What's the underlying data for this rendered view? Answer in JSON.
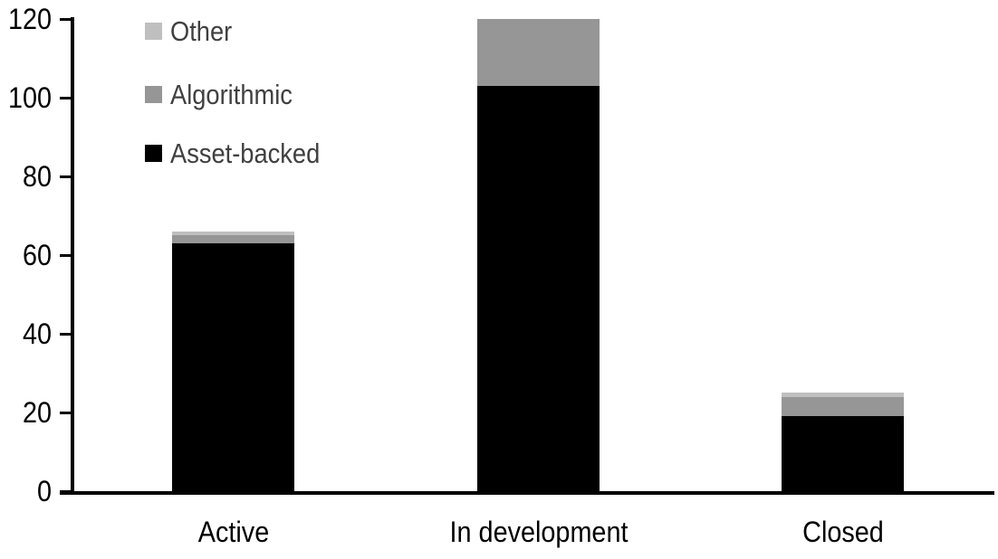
{
  "chart_data": {
    "type": "bar",
    "stacked": true,
    "title": "",
    "xlabel": "",
    "ylabel": "",
    "categories": [
      "Active",
      "In development",
      "Closed"
    ],
    "series": [
      {
        "name": "Asset-backed",
        "color": "#000000",
        "values": [
          63,
          103,
          19
        ]
      },
      {
        "name": "Algorithmic",
        "color": "#969696",
        "values": [
          2,
          17,
          5
        ]
      },
      {
        "name": "Other",
        "color": "#BFBFBF",
        "values": [
          1,
          0,
          1
        ]
      }
    ],
    "totals": [
      66,
      120,
      25
    ],
    "yticks": [
      0,
      20,
      40,
      60,
      80,
      100,
      120
    ],
    "ylim": [
      0,
      120
    ],
    "grid": false,
    "legend_position": "top-left",
    "legend_order": [
      "Other",
      "Algorithmic",
      "Asset-backed"
    ],
    "colors": {
      "axis": "#000000",
      "tick_label": "#000000",
      "legend_text": "#404040",
      "background": "#FFFFFF"
    }
  }
}
